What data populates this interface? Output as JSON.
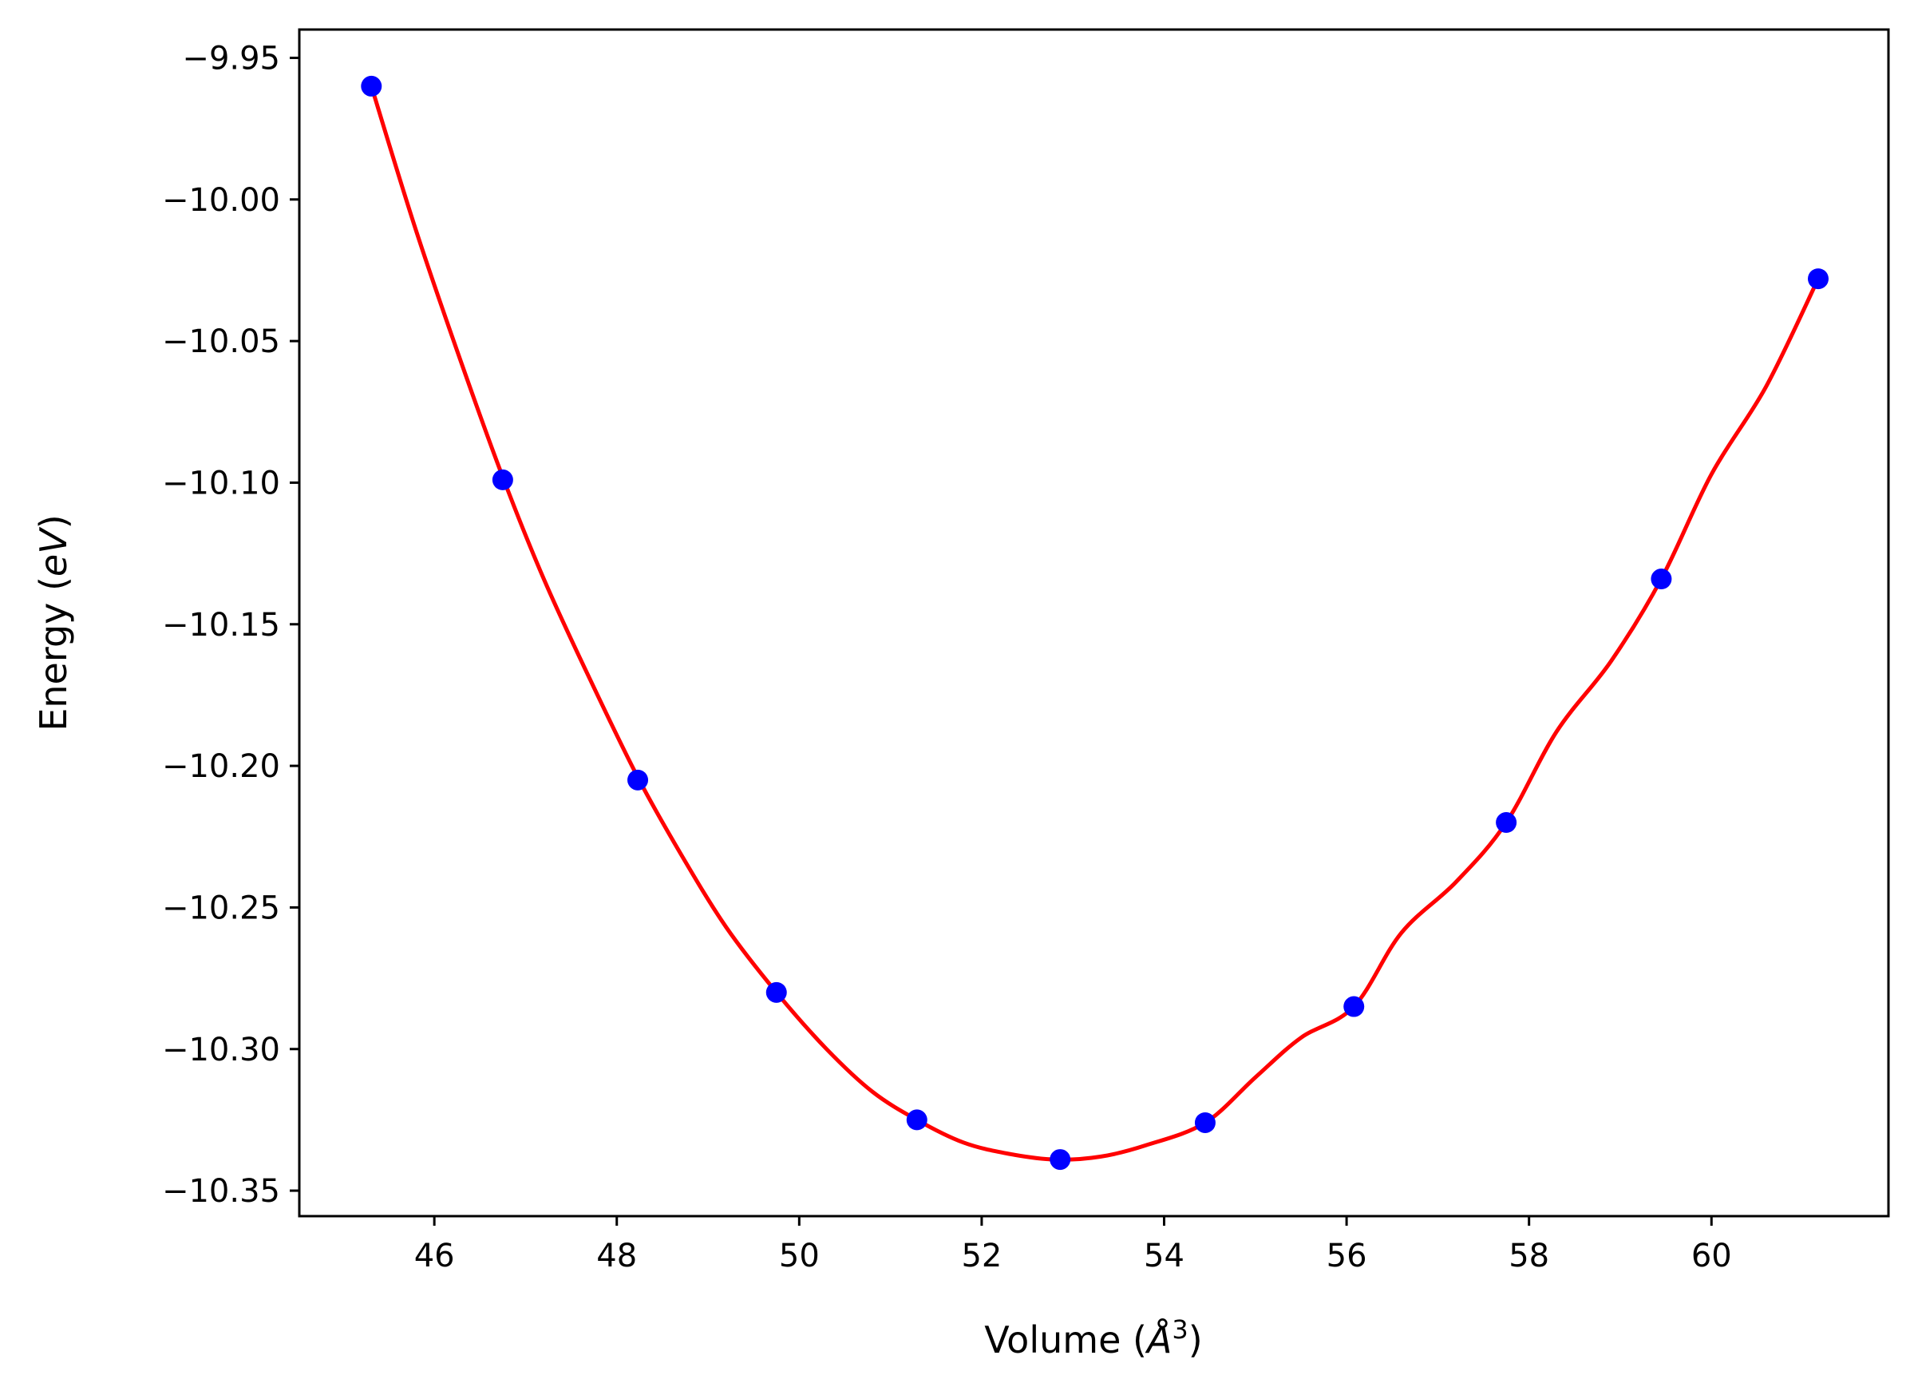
{
  "chart_data": {
    "type": "scatter",
    "xlabel_prefix": "Volume (",
    "xlabel_symbol": "Å",
    "xlabel_sup": "3",
    "xlabel_suffix": ")",
    "ylabel_prefix": "Energy (",
    "ylabel_italic": "eV",
    "ylabel_suffix": ")",
    "xlim": [
      44.52,
      61.94
    ],
    "ylim": [
      -10.359,
      -9.94
    ],
    "x_ticks": [
      46,
      48,
      50,
      52,
      54,
      56,
      58,
      60
    ],
    "x_tick_labels": [
      "46",
      "48",
      "50",
      "52",
      "54",
      "56",
      "58",
      "60"
    ],
    "y_ticks": [
      -9.95,
      -10.0,
      -10.05,
      -10.1,
      -10.15,
      -10.2,
      -10.25,
      -10.3,
      -10.35
    ],
    "y_tick_labels": [
      "−9.95",
      "−10.00",
      "−10.05",
      "−10.10",
      "−10.15",
      "−10.20",
      "−10.25",
      "−10.30",
      "−10.35"
    ],
    "grid": false,
    "legend": "none",
    "series": [
      {
        "kind": "points",
        "color": "#0000ff",
        "x": [
          45.31,
          46.75,
          48.23,
          49.75,
          51.29,
          52.86,
          54.45,
          56.08,
          57.75,
          59.45,
          61.17
        ],
        "y": [
          -9.96,
          -10.099,
          -10.205,
          -10.28,
          -10.325,
          -10.339,
          -10.326,
          -10.285,
          -10.22,
          -10.134,
          -10.028
        ]
      },
      {
        "kind": "fit-line",
        "color": "#ff0000",
        "x": [
          45.31,
          45.8,
          46.3,
          46.75,
          47.2,
          47.7,
          48.23,
          48.7,
          49.2,
          49.75,
          50.3,
          50.8,
          51.29,
          51.8,
          52.3,
          52.8,
          53.3,
          53.8,
          54.45,
          55.0,
          55.5,
          56.08,
          56.6,
          57.2,
          57.75,
          58.3,
          58.9,
          59.45,
          60.0,
          60.6,
          61.17
        ],
        "y": [
          -9.96,
          -10.011,
          -10.058,
          -10.098,
          -10.134,
          -10.169,
          -10.204,
          -10.231,
          -10.257,
          -10.28,
          -10.3,
          -10.315,
          -10.325,
          -10.333,
          -10.337,
          -10.339,
          -10.338,
          -10.334,
          -10.326,
          -10.31,
          -10.296,
          -10.285,
          -10.259,
          -10.241,
          -10.22,
          -10.188,
          -10.163,
          -10.134,
          -10.097,
          -10.066,
          -10.028
        ]
      }
    ]
  }
}
